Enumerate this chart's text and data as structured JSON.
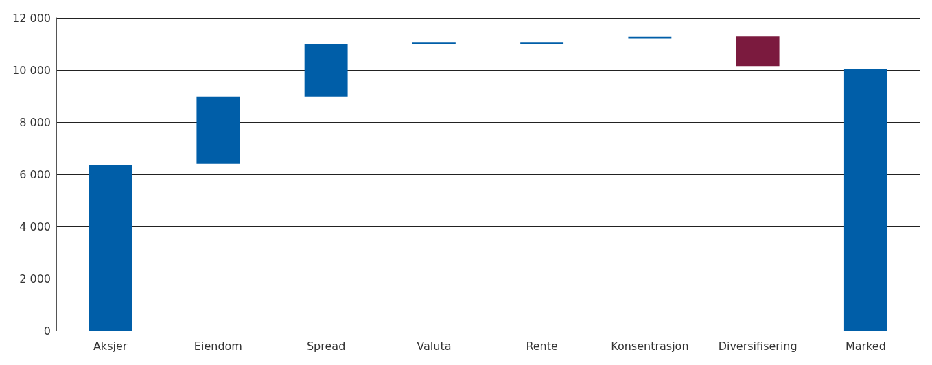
{
  "chart_data": {
    "type": "bar",
    "categories": [
      "Aksjer",
      "Eiendom",
      "Spread",
      "Valuta",
      "Rente",
      "Konsentrasjon",
      "Diversifisering",
      "Marked"
    ],
    "values": [
      6350,
      2580,
      2020,
      70,
      70,
      70,
      1130,
      10030
    ],
    "base": [
      0,
      6400,
      8980,
      11000,
      11000,
      11200,
      10150,
      0
    ],
    "colors": [
      "#005ea8",
      "#005ea8",
      "#005ea8",
      "#005ea8",
      "#005ea8",
      "#005ea8",
      "#7b1a3e",
      "#005ea8"
    ],
    "ylim": [
      0,
      12000
    ],
    "yticks": [
      {
        "value": 0,
        "label": "0"
      },
      {
        "value": 2000,
        "label": "2 000"
      },
      {
        "value": 4000,
        "label": "4 000"
      },
      {
        "value": 6000,
        "label": "6 000"
      },
      {
        "value": 8000,
        "label": "8 000"
      },
      {
        "value": 10000,
        "label": "10 000"
      },
      {
        "value": 12000,
        "label": "12 000"
      }
    ],
    "grid": "y"
  }
}
